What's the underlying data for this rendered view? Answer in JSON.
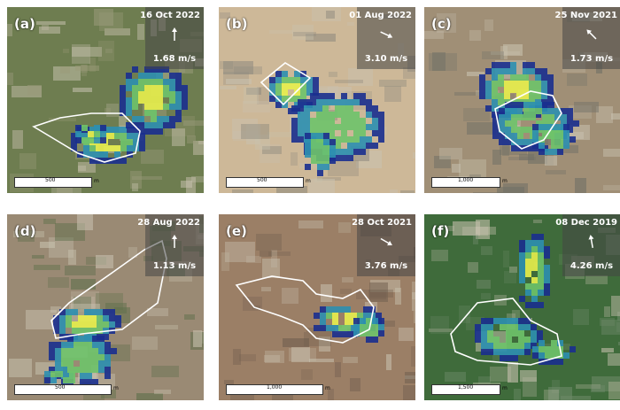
{
  "panels": [
    {
      "label": "(a)",
      "date": "16 Oct 2022",
      "speed": "1.68 m/s",
      "arrow_angle": 0,
      "scale_value": "500",
      "scale_unit": "m",
      "bg": "#6e7d50",
      "bg2": "#9a9a7a"
    },
    {
      "label": "(b)",
      "date": "01 Aug 2022",
      "speed": "3.10 m/s",
      "arrow_angle": 115,
      "scale_value": "500",
      "scale_unit": "m",
      "bg": "#cdb898",
      "bg2": "#8f8a7e"
    },
    {
      "label": "(c)",
      "date": "25 Nov 2021",
      "speed": "1.73 m/s",
      "arrow_angle": -45,
      "scale_value": "1,000",
      "scale_unit": "m",
      "bg": "#a08f76",
      "bg2": "#6f6f66"
    },
    {
      "label": "(d)",
      "date": "28 Aug 2022",
      "speed": "1.13 m/s",
      "arrow_angle": 0,
      "scale_value": "500",
      "scale_unit": "m",
      "bg": "#9a8a74",
      "bg2": "#5e6e4a"
    },
    {
      "label": "(e)",
      "date": "28 Oct 2021",
      "speed": "3.76 m/s",
      "arrow_angle": 120,
      "scale_value": "1,000",
      "scale_unit": "m",
      "bg": "#9b7f66",
      "bg2": "#6f5e4e"
    },
    {
      "label": "(f)",
      "date": "08 Dec 2019",
      "speed": "4.26 m/s",
      "arrow_angle": -10,
      "scale_value": "1,500",
      "scale_unit": "m",
      "bg": "#3f6b3b",
      "bg2": "#6f8a6a"
    }
  ],
  "colors": {
    "plume_low": "#1a2f8f",
    "plume_mid": "#2c8fb0",
    "plume_high": "#6ec36a",
    "plume_peak": "#e8f04c",
    "outline": "#ffffff"
  }
}
